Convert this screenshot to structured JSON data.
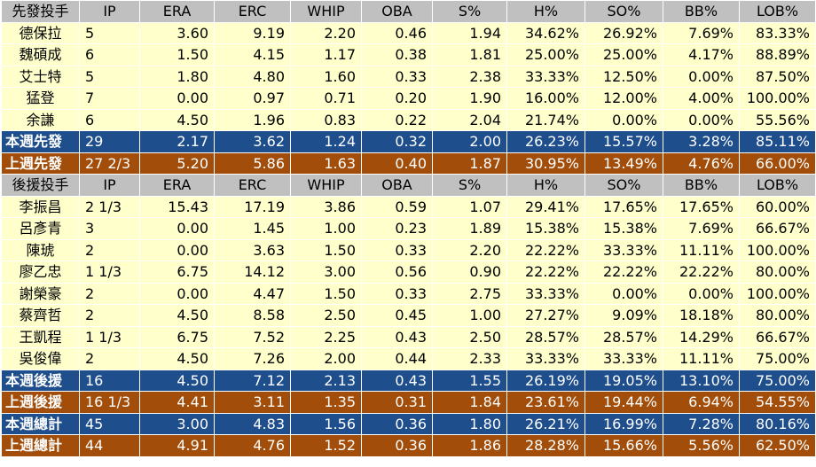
{
  "columns": [
    "IP",
    "ERA",
    "ERC",
    "WHIP",
    "OBA",
    "S%",
    "H%",
    "SO%",
    "BB%",
    "LOB%"
  ],
  "starter_title": "先發投手",
  "starters": [
    {
      "name": "德保拉",
      "ip": "5",
      "era": "3.60",
      "erc": "9.19",
      "whip": "2.20",
      "oba": "0.46",
      "s": "1.94",
      "h": "34.62%",
      "so": "26.92%",
      "bb": "7.69%",
      "lob": "83.33%"
    },
    {
      "name": "魏碩成",
      "ip": "6",
      "era": "1.50",
      "erc": "4.15",
      "whip": "1.17",
      "oba": "0.38",
      "s": "1.81",
      "h": "25.00%",
      "so": "25.00%",
      "bb": "4.17%",
      "lob": "88.89%"
    },
    {
      "name": "艾士特",
      "ip": "5",
      "era": "1.80",
      "erc": "4.80",
      "whip": "1.60",
      "oba": "0.33",
      "s": "2.38",
      "h": "33.33%",
      "so": "12.50%",
      "bb": "0.00%",
      "lob": "87.50%"
    },
    {
      "name": "猛登",
      "ip": "7",
      "era": "0.00",
      "erc": "0.97",
      "whip": "0.71",
      "oba": "0.20",
      "s": "1.90",
      "h": "16.00%",
      "so": "12.00%",
      "bb": "4.00%",
      "lob": "100.00%"
    },
    {
      "name": "余謙",
      "ip": "6",
      "era": "4.50",
      "erc": "1.96",
      "whip": "0.83",
      "oba": "0.22",
      "s": "2.04",
      "h": "21.74%",
      "so": "0.00%",
      "bb": "0.00%",
      "lob": "55.56%"
    }
  ],
  "starter_this_week": {
    "name": "本週先發",
    "ip": "29",
    "era": "2.17",
    "erc": "3.62",
    "whip": "1.24",
    "oba": "0.32",
    "s": "2.00",
    "h": "26.23%",
    "so": "15.57%",
    "bb": "3.28%",
    "lob": "85.11%"
  },
  "starter_last_week": {
    "name": "上週先發",
    "ip": "27 2/3",
    "era": "5.20",
    "erc": "5.86",
    "whip": "1.63",
    "oba": "0.40",
    "s": "1.87",
    "h": "30.95%",
    "so": "13.49%",
    "bb": "4.76%",
    "lob": "66.00%"
  },
  "reliever_title": "後援投手",
  "relievers": [
    {
      "name": "李振昌",
      "ip": "2 1/3",
      "era": "15.43",
      "erc": "17.19",
      "whip": "3.86",
      "oba": "0.59",
      "s": "1.07",
      "h": "29.41%",
      "so": "17.65%",
      "bb": "17.65%",
      "lob": "60.00%"
    },
    {
      "name": "呂彥青",
      "ip": "3",
      "era": "0.00",
      "erc": "1.45",
      "whip": "1.00",
      "oba": "0.23",
      "s": "1.89",
      "h": "15.38%",
      "so": "15.38%",
      "bb": "7.69%",
      "lob": "66.67%"
    },
    {
      "name": "陳琥",
      "ip": "2",
      "era": "0.00",
      "erc": "3.63",
      "whip": "1.50",
      "oba": "0.33",
      "s": "2.20",
      "h": "22.22%",
      "so": "33.33%",
      "bb": "11.11%",
      "lob": "100.00%"
    },
    {
      "name": "廖乙忠",
      "ip": "1 1/3",
      "era": "6.75",
      "erc": "14.12",
      "whip": "3.00",
      "oba": "0.56",
      "s": "0.90",
      "h": "22.22%",
      "so": "22.22%",
      "bb": "22.22%",
      "lob": "80.00%"
    },
    {
      "name": "謝榮豪",
      "ip": "2",
      "era": "0.00",
      "erc": "4.47",
      "whip": "1.50",
      "oba": "0.33",
      "s": "2.75",
      "h": "33.33%",
      "so": "0.00%",
      "bb": "0.00%",
      "lob": "100.00%"
    },
    {
      "name": "蔡齊哲",
      "ip": "2",
      "era": "4.50",
      "erc": "8.58",
      "whip": "2.50",
      "oba": "0.45",
      "s": "1.00",
      "h": "27.27%",
      "so": "9.09%",
      "bb": "18.18%",
      "lob": "80.00%"
    },
    {
      "name": "王凱程",
      "ip": "1 1/3",
      "era": "6.75",
      "erc": "7.52",
      "whip": "2.25",
      "oba": "0.43",
      "s": "2.50",
      "h": "28.57%",
      "so": "28.57%",
      "bb": "14.29%",
      "lob": "66.67%"
    },
    {
      "name": "吳俊偉",
      "ip": "2",
      "era": "4.50",
      "erc": "7.26",
      "whip": "2.00",
      "oba": "0.44",
      "s": "2.33",
      "h": "33.33%",
      "so": "33.33%",
      "bb": "11.11%",
      "lob": "75.00%"
    }
  ],
  "reliever_this_week": {
    "name": "本週後援",
    "ip": "16",
    "era": "4.50",
    "erc": "7.12",
    "whip": "2.13",
    "oba": "0.43",
    "s": "1.55",
    "h": "26.19%",
    "so": "19.05%",
    "bb": "13.10%",
    "lob": "75.00%"
  },
  "reliever_last_week": {
    "name": "上週後援",
    "ip": "16 1/3",
    "era": "4.41",
    "erc": "3.11",
    "whip": "1.35",
    "oba": "0.31",
    "s": "1.84",
    "h": "23.61%",
    "so": "19.44%",
    "bb": "6.94%",
    "lob": "54.55%"
  },
  "total_this_week": {
    "name": "本週總計",
    "ip": "45",
    "era": "3.00",
    "erc": "4.83",
    "whip": "1.56",
    "oba": "0.36",
    "s": "1.80",
    "h": "26.21%",
    "so": "16.99%",
    "bb": "7.28%",
    "lob": "80.16%"
  },
  "total_last_week": {
    "name": "上週總計",
    "ip": "44",
    "era": "4.91",
    "erc": "4.76",
    "whip": "1.52",
    "oba": "0.36",
    "s": "1.86",
    "h": "28.28%",
    "so": "15.66%",
    "bb": "5.56%",
    "lob": "62.50%"
  },
  "colors": {
    "header_bg": "#c0c0c0",
    "row_bg": "#ffffcc",
    "this_week_bg": "#1f4e8c",
    "last_week_bg": "#a24e0a"
  }
}
